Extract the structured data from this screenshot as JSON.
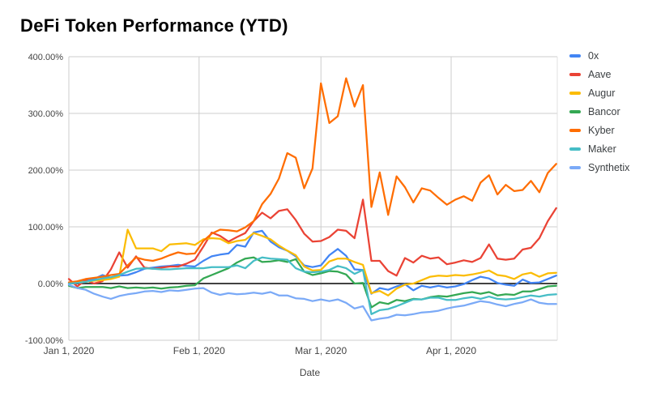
{
  "header": {
    "title": "DeFi Token Performance (YTD)"
  },
  "palette": {
    "background": "#ffffff",
    "gridline": "#cccccc",
    "zero_line": "#424242",
    "plot_right_border": "#e0e0e0",
    "axis_text": "#444444",
    "legend_text": "#3c4043",
    "title_text": "#000000"
  },
  "chart_data": {
    "type": "line",
    "title": "DeFi Token Performance (YTD)",
    "xlabel": "Date",
    "ylabel": "",
    "grid": true,
    "legend_position": "right",
    "y_axis": {
      "ylim": [
        -100,
        400
      ],
      "tick_values": [
        400,
        300,
        200,
        100,
        0,
        -100
      ],
      "tick_labels": [
        "400.00%",
        "300.00%",
        "200.00%",
        "100.00%",
        "0.00%",
        "-100.00%"
      ]
    },
    "x_axis": {
      "xlim_days": [
        0,
        116
      ],
      "tick_days": [
        0,
        31,
        60,
        91
      ],
      "tick_labels": [
        "Jan 1, 2020",
        "Feb 1, 2020",
        "Mar 1, 2020",
        "Apr 1, 2020"
      ]
    },
    "x_days": [
      0,
      2,
      4,
      6,
      8,
      10,
      12,
      14,
      16,
      18,
      20,
      22,
      24,
      26,
      28,
      30,
      32,
      34,
      36,
      38,
      40,
      42,
      44,
      46,
      48,
      50,
      52,
      54,
      56,
      58,
      60,
      62,
      64,
      66,
      68,
      70,
      72,
      74,
      76,
      78,
      80,
      82,
      84,
      86,
      88,
      90,
      92,
      94,
      96,
      98,
      100,
      102,
      104,
      106,
      108,
      110,
      112,
      114,
      116
    ],
    "x_dates": [
      "Jan 1",
      "Jan 3",
      "Jan 5",
      "Jan 7",
      "Jan 9",
      "Jan 11",
      "Jan 13",
      "Jan 15",
      "Jan 17",
      "Jan 19",
      "Jan 21",
      "Jan 23",
      "Jan 25",
      "Jan 27",
      "Jan 29",
      "Jan 31",
      "Feb 2",
      "Feb 4",
      "Feb 6",
      "Feb 8",
      "Feb 10",
      "Feb 12",
      "Feb 14",
      "Feb 16",
      "Feb 18",
      "Feb 20",
      "Feb 22",
      "Feb 24",
      "Feb 26",
      "Feb 28",
      "Mar 1",
      "Mar 3",
      "Mar 5",
      "Mar 7",
      "Mar 9",
      "Mar 11",
      "Mar 13",
      "Mar 15",
      "Mar 17",
      "Mar 19",
      "Mar 21",
      "Mar 23",
      "Mar 25",
      "Mar 27",
      "Mar 29",
      "Mar 31",
      "Apr 2",
      "Apr 4",
      "Apr 6",
      "Apr 8",
      "Apr 10",
      "Apr 12",
      "Apr 14",
      "Apr 16",
      "Apr 18",
      "Apr 20",
      "Apr 22",
      "Apr 24",
      "Apr 26"
    ],
    "unit": "percent",
    "series": [
      {
        "name": "0x",
        "color": "#4285F4",
        "values": [
          0,
          2,
          6,
          8,
          15,
          10,
          14,
          15,
          20,
          26,
          28,
          30,
          31,
          33,
          31,
          30,
          40,
          48,
          51,
          53,
          68,
          65,
          90,
          93,
          74,
          64,
          58,
          48,
          32,
          29,
          32,
          50,
          61,
          49,
          25,
          24,
          -18,
          -8,
          -11,
          -5,
          -1,
          -12,
          -4,
          -7,
          -4,
          -7,
          -5,
          -1,
          6,
          12,
          9,
          1,
          -2,
          -4,
          7,
          1,
          2,
          8,
          14
        ]
      },
      {
        "name": "Aave",
        "color": "#EA4335",
        "values": [
          8,
          -5,
          6,
          0,
          4,
          25,
          55,
          28,
          48,
          28,
          26,
          28,
          30,
          30,
          35,
          42,
          65,
          90,
          84,
          74,
          82,
          89,
          110,
          125,
          115,
          128,
          131,
          112,
          88,
          74,
          75,
          82,
          95,
          93,
          80,
          148,
          40,
          40,
          22,
          14,
          45,
          37,
          49,
          44,
          46,
          34,
          37,
          41,
          38,
          45,
          69,
          44,
          42,
          44,
          60,
          63,
          80,
          110,
          133
        ]
      },
      {
        "name": "Augur",
        "color": "#FBBC04",
        "values": [
          0,
          2,
          3,
          5,
          6,
          8,
          12,
          95,
          62,
          62,
          62,
          57,
          69,
          70,
          71,
          68,
          78,
          80,
          79,
          71,
          75,
          77,
          89,
          84,
          78,
          67,
          58,
          50,
          30,
          23,
          24,
          39,
          44,
          44,
          38,
          33,
          -17,
          -13,
          -21,
          -9,
          -2,
          0,
          6,
          12,
          14,
          13,
          15,
          14,
          16,
          19,
          23,
          15,
          13,
          8,
          16,
          19,
          12,
          18,
          19
        ]
      },
      {
        "name": "Bancor",
        "color": "#34A853",
        "values": [
          -4,
          -8,
          -6,
          -6,
          -6,
          -8,
          -5,
          -8,
          -7,
          -8,
          -7,
          -9,
          -7,
          -6,
          -4,
          -3,
          9,
          15,
          21,
          27,
          37,
          44,
          46,
          38,
          39,
          41,
          38,
          43,
          21,
          15,
          18,
          22,
          21,
          16,
          0,
          1,
          -42,
          -33,
          -36,
          -29,
          -31,
          -27,
          -28,
          -24,
          -22,
          -23,
          -20,
          -17,
          -15,
          -18,
          -15,
          -21,
          -19,
          -20,
          -14,
          -14,
          -10,
          -5,
          -4
        ]
      },
      {
        "name": "Kyber",
        "color": "#FF6D01",
        "values": [
          2,
          4,
          8,
          10,
          12,
          15,
          17,
          32,
          46,
          42,
          40,
          44,
          50,
          55,
          52,
          53,
          75,
          88,
          95,
          94,
          92,
          99,
          110,
          140,
          158,
          185,
          230,
          222,
          168,
          203,
          353,
          283,
          295,
          362,
          312,
          350,
          135,
          196,
          121,
          189,
          170,
          143,
          168,
          164,
          151,
          139,
          148,
          154,
          146,
          178,
          191,
          157,
          174,
          163,
          165,
          181,
          161,
          195,
          211
        ]
      },
      {
        "name": "Maker",
        "color": "#46BDC6",
        "values": [
          0,
          1,
          3,
          6,
          9,
          11,
          15,
          21,
          26,
          27,
          26,
          25,
          25,
          26,
          27,
          27,
          27,
          29,
          29,
          29,
          32,
          27,
          40,
          46,
          44,
          43,
          42,
          27,
          21,
          20,
          21,
          24,
          31,
          27,
          17,
          24,
          -54,
          -47,
          -45,
          -40,
          -34,
          -28,
          -28,
          -25,
          -25,
          -29,
          -29,
          -26,
          -24,
          -27,
          -23,
          -27,
          -28,
          -27,
          -24,
          -21,
          -23,
          -20,
          -19
        ]
      },
      {
        "name": "Synthetix",
        "color": "#7BAAF7",
        "values": [
          -2,
          -8,
          -11,
          -18,
          -23,
          -27,
          -22,
          -19,
          -17,
          -14,
          -13,
          -15,
          -12,
          -13,
          -11,
          -9,
          -8,
          -16,
          -20,
          -17,
          -19,
          -18,
          -16,
          -18,
          -15,
          -21,
          -21,
          -26,
          -27,
          -31,
          -28,
          -31,
          -28,
          -34,
          -44,
          -40,
          -65,
          -62,
          -60,
          -55,
          -56,
          -54,
          -51,
          -50,
          -48,
          -44,
          -41,
          -39,
          -35,
          -31,
          -33,
          -37,
          -40,
          -36,
          -33,
          -28,
          -34,
          -36,
          -36
        ]
      }
    ]
  }
}
